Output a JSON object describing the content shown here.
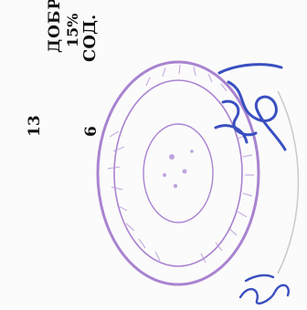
{
  "document": {
    "header_line1": "ДОБР",
    "header_line2": "15%",
    "header_line3": "СОД.",
    "numbers": [
      "13",
      "6"
    ]
  },
  "stamp": {
    "color": "#9b6fc9",
    "text": ""
  },
  "signature": {
    "color": "#3a4fc0"
  }
}
